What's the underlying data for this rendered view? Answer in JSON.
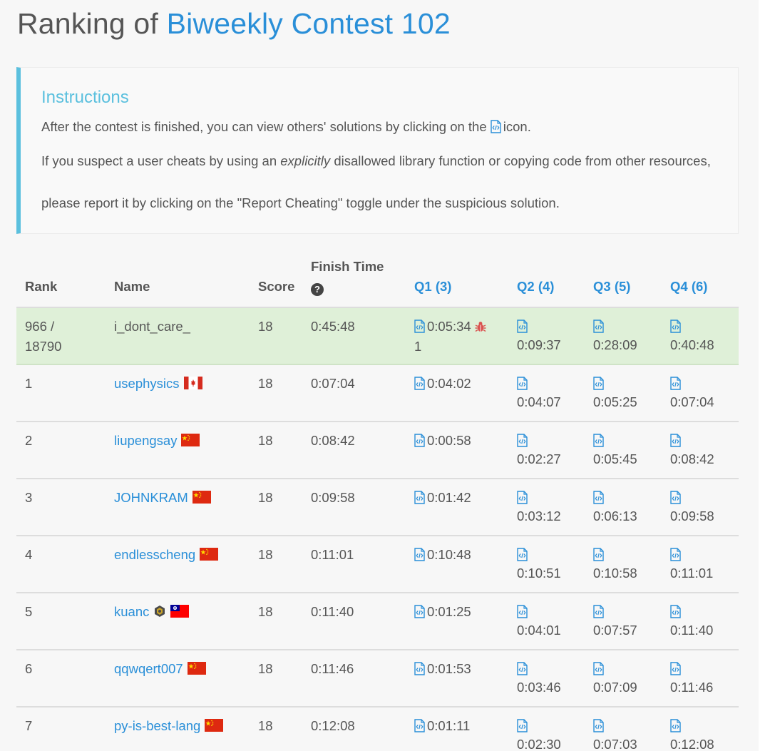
{
  "title": {
    "prefix": "Ranking of",
    "contest": "Biweekly Contest 102"
  },
  "instructions": {
    "heading": "Instructions",
    "p1_before": "After the contest is finished, you can view others' solutions by clicking on the",
    "p1_after": "icon.",
    "p2_before": "If you suspect a user cheats by using an",
    "p2_em": "explicitly",
    "p2_after": "disallowed library function or copying code from other resources,",
    "p3": "please report it by clicking on the \"Report Cheating\" toggle under the suspicious solution."
  },
  "table": {
    "headers": {
      "rank": "Rank",
      "name": "Name",
      "score": "Score",
      "finish": "Finish Time",
      "help": "?",
      "q1": "Q1 (3)",
      "q2": "Q2 (4)",
      "q3": "Q3 (5)",
      "q4": "Q4 (6)"
    },
    "me": {
      "rank_line1": "966 /",
      "rank_line2": "18790",
      "name": "i_dont_care_",
      "score": "18",
      "finish": "0:45:48",
      "q1": "0:05:34",
      "q1_penalty": "1",
      "q2": "0:09:37",
      "q3": "0:28:09",
      "q4": "0:40:48"
    },
    "rows": [
      {
        "rank": "1",
        "name": "usephysics",
        "flag": "ca",
        "score": "18",
        "finish": "0:07:04",
        "q1": "0:04:02",
        "q2": "0:04:07",
        "q3": "0:05:25",
        "q4": "0:07:04"
      },
      {
        "rank": "2",
        "name": "liupengsay",
        "flag": "cn",
        "score": "18",
        "finish": "0:08:42",
        "q1": "0:00:58",
        "q2": "0:02:27",
        "q3": "0:05:45",
        "q4": "0:08:42"
      },
      {
        "rank": "3",
        "name": "JOHNKRAM",
        "flag": "cn",
        "score": "18",
        "finish": "0:09:58",
        "q1": "0:01:42",
        "q2": "0:03:12",
        "q3": "0:06:13",
        "q4": "0:09:58"
      },
      {
        "rank": "4",
        "name": "endlesscheng",
        "flag": "cn",
        "score": "18",
        "finish": "0:11:01",
        "q1": "0:10:48",
        "q2": "0:10:51",
        "q3": "0:10:58",
        "q4": "0:11:01"
      },
      {
        "rank": "5",
        "name": "kuanc",
        "flag": "tw",
        "badge": true,
        "score": "18",
        "finish": "0:11:40",
        "q1": "0:01:25",
        "q2": "0:04:01",
        "q3": "0:07:57",
        "q4": "0:11:40"
      },
      {
        "rank": "6",
        "name": "qqwqert007",
        "flag": "cn",
        "score": "18",
        "finish": "0:11:46",
        "q1": "0:01:53",
        "q2": "0:03:46",
        "q3": "0:07:09",
        "q4": "0:11:46"
      },
      {
        "rank": "7",
        "name": "py-is-best-lang",
        "flag": "cn",
        "score": "18",
        "finish": "0:12:08",
        "q1": "0:01:11",
        "q2": "0:02:30",
        "q3": "0:07:03",
        "q4": "0:12:08"
      }
    ]
  },
  "icons": {
    "solution": "code-file-icon",
    "bug": "bug-icon",
    "help": "question-circle-icon",
    "badge": "guardian-badge-icon"
  },
  "colors": {
    "accent": "#2a8fd8",
    "info": "#5bc0de",
    "highlight_row": "#dff0d8",
    "bug": "#d9534f"
  }
}
